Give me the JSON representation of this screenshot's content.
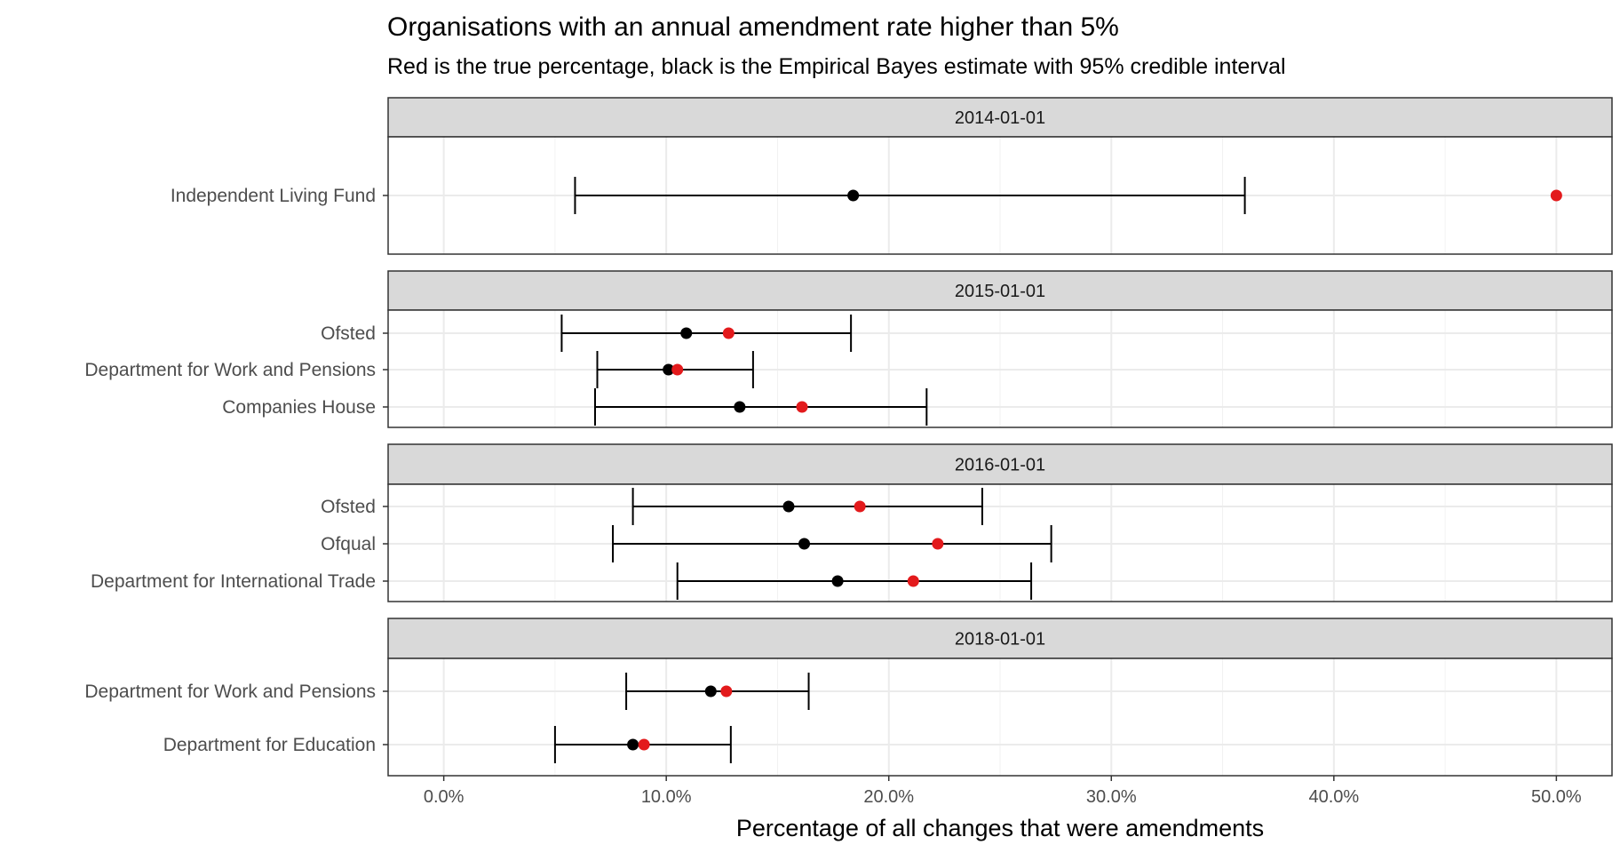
{
  "chart_data": {
    "type": "errorbar-dotplot",
    "title": "Organisations with an annual amendment rate higher than 5%",
    "subtitle": "Red is the true percentage, black is the Empirical Bayes estimate with 95% credible interval",
    "xlabel": "Percentage of all changes that were amendments",
    "xlim": [
      -2.5,
      52.5
    ],
    "x_ticks": [
      0,
      10,
      20,
      30,
      40,
      50
    ],
    "x_tick_labels": [
      "0.0%",
      "10.0%",
      "20.0%",
      "30.0%",
      "40.0%",
      "50.0%"
    ],
    "grid": true,
    "colors": {
      "true_pct": "#e31a1c",
      "estimate": "#000000",
      "strip_bg": "#d9d9d9",
      "grid": "#ebebeb"
    },
    "panels": [
      {
        "facet": "2014-01-01",
        "rows": [
          {
            "label": "Independent Living Fund",
            "lower": 5.9,
            "estimate": 18.4,
            "upper": 36.0,
            "true_pct": 50.0
          }
        ]
      },
      {
        "facet": "2015-01-01",
        "rows": [
          {
            "label": "Ofsted",
            "lower": 5.3,
            "estimate": 10.9,
            "upper": 18.3,
            "true_pct": 12.8
          },
          {
            "label": "Department for Work and Pensions",
            "lower": 6.9,
            "estimate": 10.1,
            "upper": 13.9,
            "true_pct": 10.5
          },
          {
            "label": "Companies House ",
            "lower": 6.8,
            "estimate": 13.3,
            "upper": 21.7,
            "true_pct": 16.1
          }
        ]
      },
      {
        "facet": "2016-01-01",
        "rows": [
          {
            "label": "Ofsted",
            "lower": 8.5,
            "estimate": 15.5,
            "upper": 24.2,
            "true_pct": 18.7
          },
          {
            "label": "Ofqual",
            "lower": 7.6,
            "estimate": 16.2,
            "upper": 27.3,
            "true_pct": 22.2
          },
          {
            "label": "Department for International Trade",
            "lower": 10.5,
            "estimate": 17.7,
            "upper": 26.4,
            "true_pct": 21.1
          }
        ]
      },
      {
        "facet": "2018-01-01",
        "rows": [
          {
            "label": "Department for Work and Pensions",
            "lower": 8.2,
            "estimate": 12.0,
            "upper": 16.4,
            "true_pct": 12.7
          },
          {
            "label": "Department for Education",
            "lower": 5.0,
            "estimate": 8.5,
            "upper": 12.9,
            "true_pct": 9.0
          }
        ]
      }
    ]
  }
}
